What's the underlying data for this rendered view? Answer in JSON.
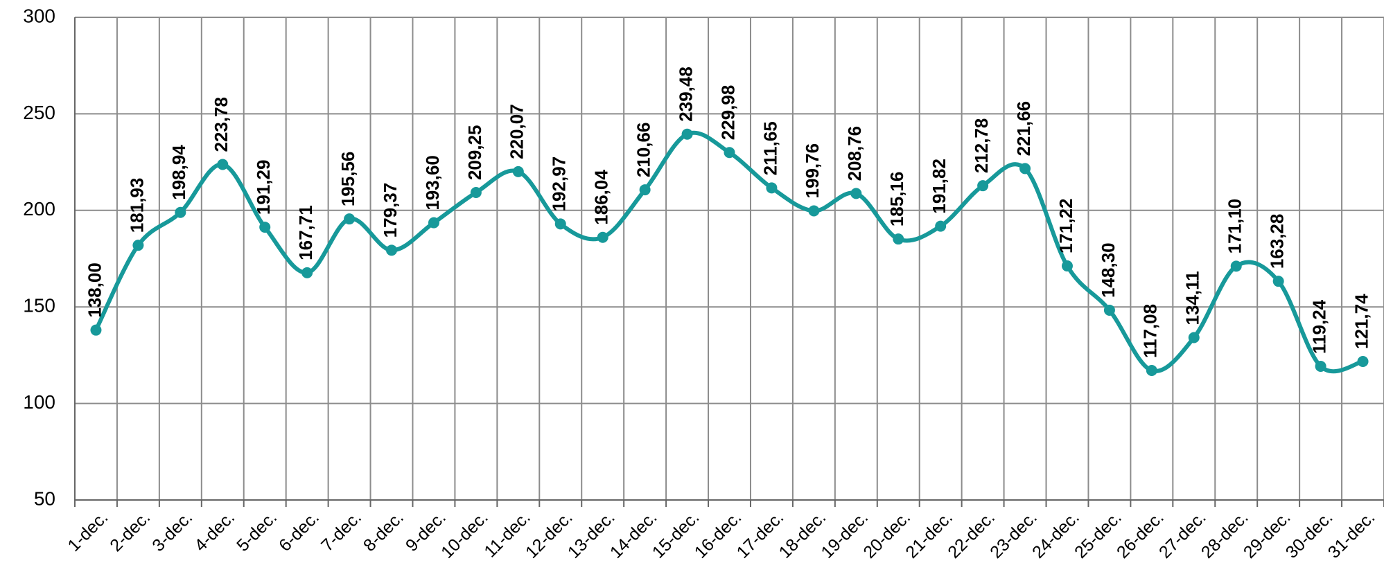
{
  "chart_data": {
    "type": "line",
    "categories": [
      "1-dec.",
      "2-dec.",
      "3-dec.",
      "4-dec.",
      "5-dec.",
      "6-dec.",
      "7-dec.",
      "8-dec.",
      "9-dec.",
      "10-dec.",
      "11-dec.",
      "12-dec.",
      "13-dec.",
      "14-dec.",
      "15-dec.",
      "16-dec.",
      "17-dec.",
      "18-dec.",
      "19-dec.",
      "20-dec.",
      "21-dec.",
      "22-dec.",
      "23-dec.",
      "24-dec.",
      "25-dec.",
      "26-dec.",
      "27-dec.",
      "28-dec.",
      "29-dec.",
      "30-dec.",
      "31-dec."
    ],
    "values": [
      138.0,
      181.93,
      198.94,
      223.78,
      191.29,
      167.71,
      195.56,
      179.37,
      193.6,
      209.25,
      220.07,
      192.97,
      186.04,
      210.66,
      239.48,
      229.98,
      211.65,
      199.76,
      208.76,
      185.16,
      191.82,
      212.78,
      221.66,
      171.22,
      148.3,
      117.08,
      134.11,
      171.1,
      163.28,
      119.24,
      121.74
    ],
    "value_labels": [
      "138,00",
      "181,93",
      "198,94",
      "223,78",
      "191,29",
      "167,71",
      "195,56",
      "179,37",
      "193,60",
      "209,25",
      "220,07",
      "192,97",
      "186,04",
      "210,66",
      "239,48",
      "229,98",
      "211,65",
      "199,76",
      "208,76",
      "185,16",
      "191,82",
      "212,78",
      "221,66",
      "171,22",
      "148,30",
      "117,08",
      "134,11",
      "171,10",
      "163,28",
      "119,24",
      "121,74"
    ],
    "color": "#17999a",
    "ylim": [
      50,
      300
    ],
    "yticks": [
      50,
      100,
      150,
      200,
      250,
      300
    ],
    "grid": true
  }
}
